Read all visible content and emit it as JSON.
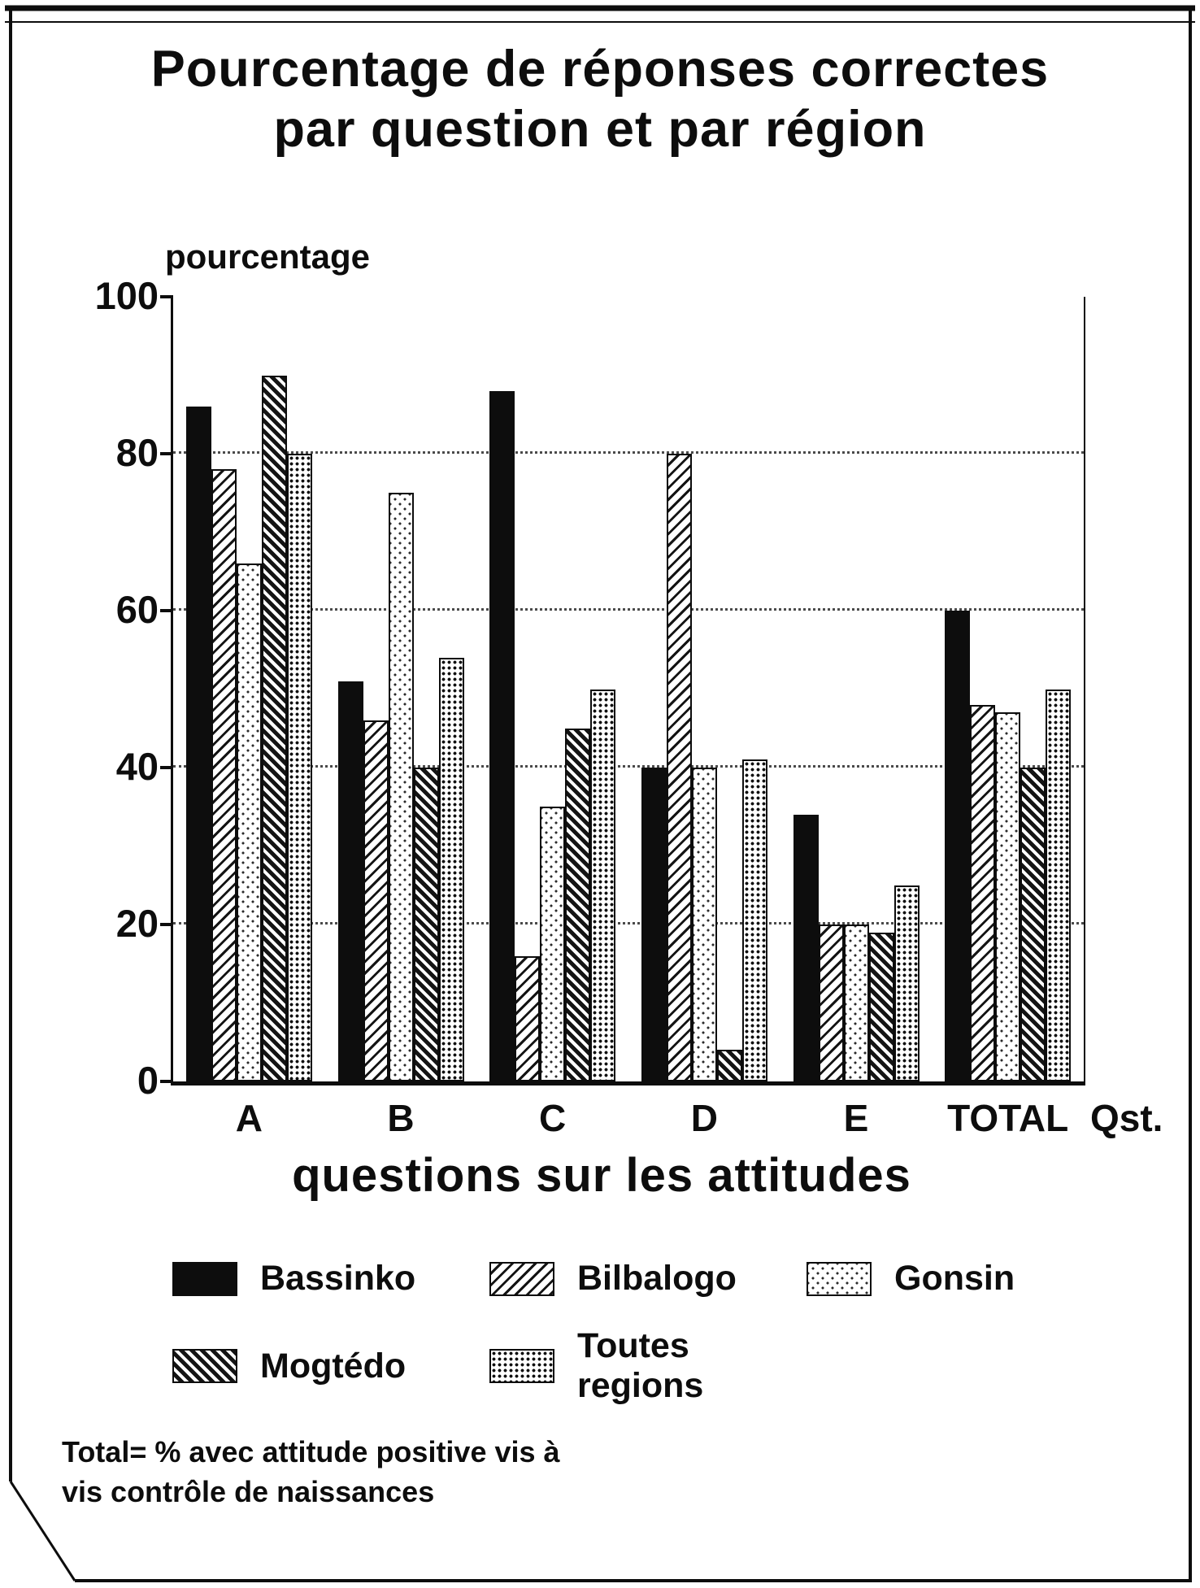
{
  "page": {
    "title_line1": "Pourcentage de réponses correctes",
    "title_line2": "par question et par région",
    "footnote_line1": "Total= % avec attitude positive vis à",
    "footnote_line2": "vis contrôle de naissances"
  },
  "chart_data": {
    "type": "bar",
    "title": "Pourcentage de réponses correctes par question et par région",
    "ylabel": "pourcentage",
    "xlabel": "questions sur les attitudes",
    "x_axis_suffix": "Qst.",
    "ylim": [
      0,
      100
    ],
    "yticks": [
      0,
      20,
      40,
      60,
      80,
      100
    ],
    "gridlines": [
      20,
      40,
      60,
      80
    ],
    "grid": "dotted-horizontal",
    "legend_position": "bottom",
    "categories": [
      "A",
      "B",
      "C",
      "D",
      "E",
      "TOTAL"
    ],
    "series": [
      {
        "name": "Bassinko",
        "pattern": "solid-black",
        "values": [
          86,
          51,
          88,
          40,
          34,
          60
        ]
      },
      {
        "name": "Bilbalogo",
        "pattern": "diagonal-up-hatch",
        "values": [
          78,
          46,
          16,
          80,
          20,
          48
        ]
      },
      {
        "name": "Gonsin",
        "pattern": "sparse-dots",
        "values": [
          66,
          75,
          35,
          40,
          20,
          47
        ]
      },
      {
        "name": "Mogtédo",
        "pattern": "diagonal-down-hatch",
        "values": [
          90,
          40,
          45,
          4,
          19,
          40
        ]
      },
      {
        "name": "Toutes regions",
        "pattern": "dense-dots",
        "values": [
          80,
          54,
          50,
          41,
          25,
          50
        ]
      }
    ],
    "legend_rows": [
      [
        0,
        1,
        2
      ],
      [
        3,
        4
      ]
    ]
  },
  "colors": {
    "ink": "#0d0d0d",
    "paper": "#ffffff"
  }
}
